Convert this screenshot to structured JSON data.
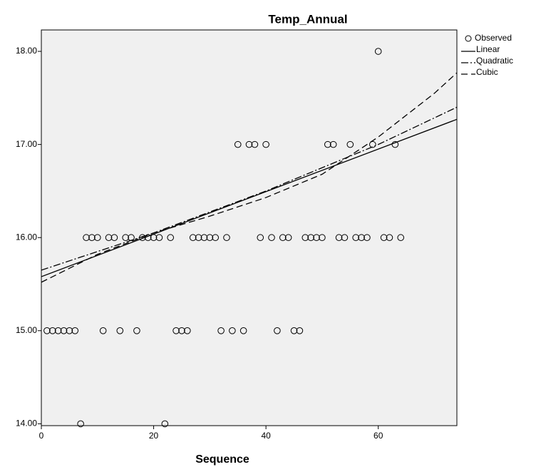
{
  "chart_data": {
    "type": "scatter",
    "title": "Temp_Annual",
    "x_label": "Sequence",
    "xlim": [
      0,
      74
    ],
    "xticks": [
      0,
      20,
      40,
      60
    ],
    "ylim": [
      13.98,
      18.23
    ],
    "yticks": [
      {
        "value": 14,
        "label": "14.00"
      },
      {
        "value": 15,
        "label": "15.00"
      },
      {
        "value": 16,
        "label": "16.00"
      },
      {
        "value": 17,
        "label": "17.00"
      },
      {
        "value": 18,
        "label": "18.00"
      }
    ],
    "background": "#f0f0f0",
    "legend": "right",
    "series": [
      {
        "name": "Observed",
        "color": "#000000",
        "style": "marker",
        "x": [
          1,
          2,
          3,
          4,
          5,
          6,
          7,
          8,
          9,
          10,
          11,
          12,
          13,
          14,
          15,
          16,
          17,
          18,
          19,
          20,
          21,
          22,
          23,
          24,
          25,
          26,
          27,
          28,
          29,
          30,
          31,
          32,
          33,
          34,
          35,
          36,
          37,
          38,
          39,
          40,
          41,
          42,
          43,
          44,
          45,
          46,
          47,
          48,
          49,
          50,
          51,
          52,
          53,
          54,
          55,
          56,
          57,
          58,
          59,
          60,
          61,
          62,
          63,
          64
        ],
        "values": [
          15,
          15,
          15,
          15,
          15,
          15,
          14,
          16,
          16,
          16,
          15,
          16,
          16,
          15,
          16,
          16,
          15,
          16,
          16,
          16,
          16,
          14,
          16,
          15,
          15,
          15,
          16,
          16,
          16,
          16,
          16,
          15,
          16,
          15,
          17,
          15,
          17,
          17,
          16,
          17,
          16,
          15,
          16,
          16,
          15,
          15,
          16,
          16,
          16,
          16,
          17,
          17,
          16,
          16,
          17,
          16,
          16,
          16,
          17,
          18,
          16,
          16,
          17,
          16
        ]
      },
      {
        "name": "Linear",
        "color": "#000000",
        "style": "solid",
        "x": [
          0,
          74
        ],
        "values": [
          15.58,
          17.27
        ]
      },
      {
        "name": "Quadratic",
        "color": "#000000",
        "style": "dashdot",
        "x": [
          0,
          20,
          40,
          60,
          74
        ],
        "values": [
          15.65,
          16.05,
          16.5,
          17.0,
          17.4
        ]
      },
      {
        "name": "Cubic",
        "color": "#000000",
        "style": "dash",
        "x": [
          0,
          10,
          20,
          30,
          40,
          50,
          60,
          70,
          74
        ],
        "values": [
          15.52,
          15.82,
          16.05,
          16.23,
          16.43,
          16.68,
          17.08,
          17.55,
          17.77
        ]
      }
    ]
  }
}
